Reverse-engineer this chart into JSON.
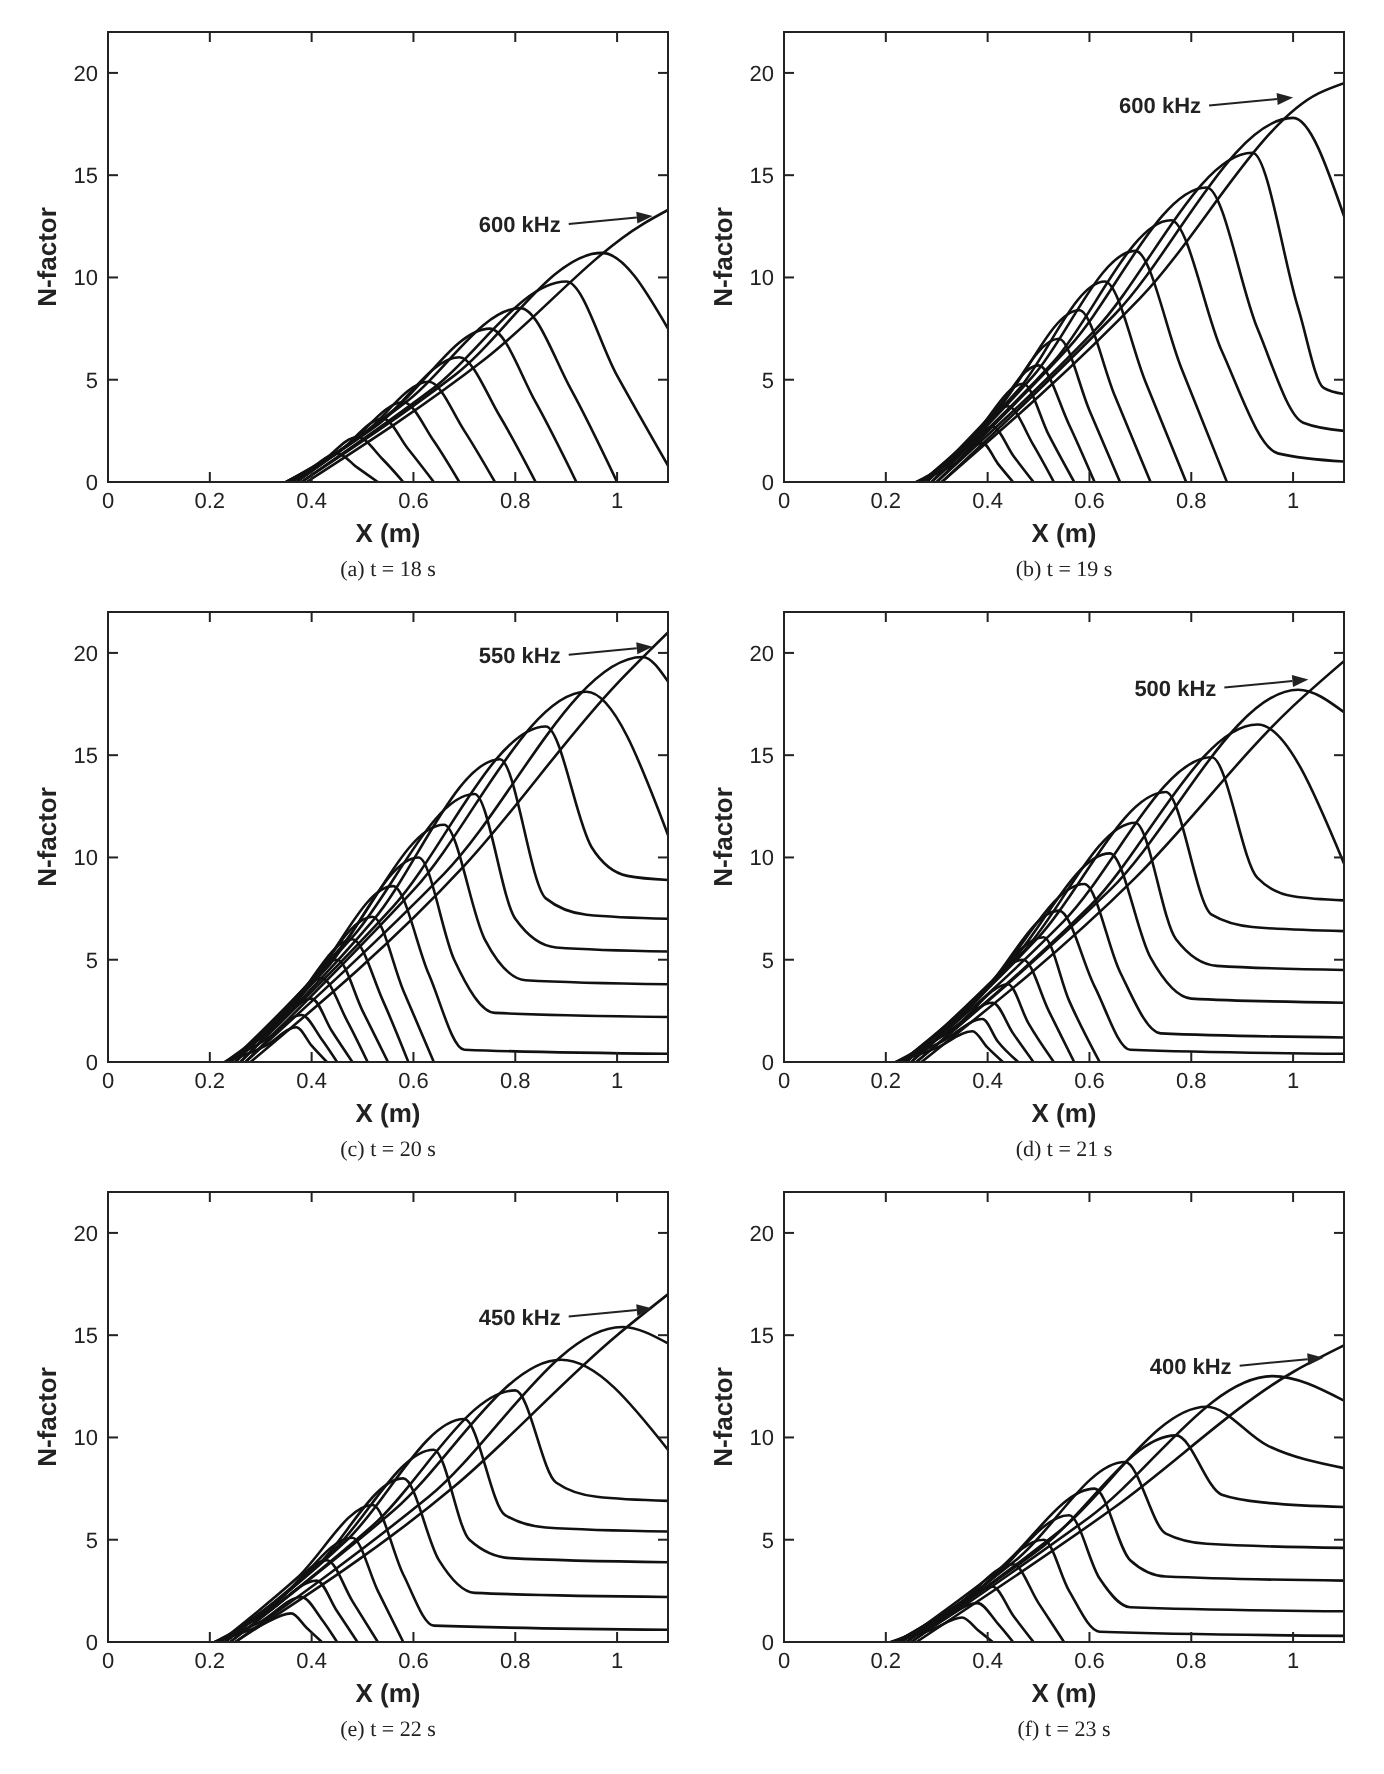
{
  "chart_data": [
    {
      "type": "line",
      "title": "(a) t = 18 s",
      "xlabel": "X (m)",
      "ylabel": "N-factor",
      "color": "#111111",
      "xlim": [
        0,
        1.1
      ],
      "ylim": [
        0,
        22
      ],
      "xticks": [
        0,
        0.2,
        0.4,
        0.6,
        0.8,
        1
      ],
      "yticks": [
        0,
        5,
        10,
        15,
        20
      ],
      "annotations": [
        {
          "text": "600 kHz",
          "x": 1.07,
          "y": 13.0
        }
      ],
      "series": [
        {
          "x": [
            0.35,
            0.4,
            0.45,
            0.49,
            0.53
          ],
          "values": [
            0,
            0.7,
            1.4,
            0.7,
            0
          ]
        },
        {
          "x": [
            0.35,
            0.42,
            0.49,
            0.54,
            0.58
          ],
          "values": [
            0,
            1.0,
            2.2,
            1.1,
            0
          ]
        },
        {
          "x": [
            0.35,
            0.45,
            0.54,
            0.59,
            0.64
          ],
          "values": [
            0,
            1.4,
            3.1,
            1.6,
            0
          ]
        },
        {
          "x": [
            0.36,
            0.47,
            0.58,
            0.64,
            0.69
          ],
          "values": [
            0,
            1.8,
            3.9,
            2.0,
            0
          ]
        },
        {
          "x": [
            0.36,
            0.5,
            0.63,
            0.7,
            0.76
          ],
          "values": [
            0,
            2.3,
            4.9,
            2.5,
            0
          ]
        },
        {
          "x": [
            0.36,
            0.53,
            0.69,
            0.77,
            0.84
          ],
          "values": [
            0,
            2.8,
            6.1,
            3.2,
            0
          ]
        },
        {
          "x": [
            0.37,
            0.56,
            0.75,
            0.84,
            0.92
          ],
          "values": [
            0,
            3.5,
            7.5,
            3.9,
            0
          ]
        },
        {
          "x": [
            0.37,
            0.59,
            0.81,
            0.91,
            1.0
          ],
          "values": [
            0,
            4.0,
            8.5,
            4.5,
            0
          ]
        },
        {
          "x": [
            0.38,
            0.64,
            0.9,
            1.0,
            1.1
          ],
          "values": [
            0,
            4.6,
            9.8,
            5.2,
            0.8
          ]
        },
        {
          "x": [
            0.38,
            0.68,
            0.97,
            1.1
          ],
          "values": [
            0,
            5.2,
            11.2,
            7.5
          ]
        },
        {
          "x": [
            0.39,
            0.74,
            1.05,
            1.1
          ],
          "values": [
            0,
            6.0,
            12.6,
            13.3
          ]
        }
      ]
    },
    {
      "type": "line",
      "title": "(b) t = 19 s",
      "xlabel": "X (m)",
      "ylabel": "N-factor",
      "color": "#111111",
      "xlim": [
        0,
        1.1
      ],
      "ylim": [
        0,
        22
      ],
      "xticks": [
        0,
        0.2,
        0.4,
        0.6,
        0.8,
        1
      ],
      "yticks": [
        0,
        5,
        10,
        15,
        20
      ],
      "annotations": [
        {
          "text": "600 kHz",
          "x": 1.0,
          "y": 18.8
        }
      ],
      "series": [
        {
          "x": [
            0.26,
            0.33,
            0.39,
            0.42,
            0.45
          ],
          "values": [
            0,
            0.8,
            1.9,
            0.9,
            0
          ]
        },
        {
          "x": [
            0.26,
            0.34,
            0.41,
            0.45,
            0.49
          ],
          "values": [
            0,
            1.2,
            2.7,
            1.3,
            0
          ]
        },
        {
          "x": [
            0.27,
            0.36,
            0.44,
            0.49,
            0.53
          ],
          "values": [
            0,
            1.7,
            3.7,
            1.8,
            0
          ]
        },
        {
          "x": [
            0.27,
            0.37,
            0.47,
            0.52,
            0.57
          ],
          "values": [
            0,
            2.2,
            4.8,
            2.3,
            0
          ]
        },
        {
          "x": [
            0.27,
            0.39,
            0.5,
            0.56,
            0.61
          ],
          "values": [
            0,
            2.6,
            5.7,
            2.8,
            0
          ]
        },
        {
          "x": [
            0.28,
            0.41,
            0.54,
            0.6,
            0.66
          ],
          "values": [
            0,
            3.2,
            7.0,
            3.5,
            0
          ]
        },
        {
          "x": [
            0.28,
            0.43,
            0.58,
            0.65,
            0.72
          ],
          "values": [
            0,
            3.9,
            8.4,
            4.2,
            0
          ]
        },
        {
          "x": [
            0.28,
            0.46,
            0.63,
            0.71,
            0.79
          ],
          "values": [
            0,
            4.5,
            9.8,
            4.9,
            0
          ]
        },
        {
          "x": [
            0.29,
            0.49,
            0.69,
            0.78,
            0.87
          ],
          "values": [
            0,
            5.2,
            11.3,
            5.6,
            0
          ]
        },
        {
          "x": [
            0.29,
            0.53,
            0.76,
            0.86,
            0.97,
            1.1
          ],
          "values": [
            0,
            5.9,
            12.8,
            6.4,
            1.4,
            1.0
          ]
        },
        {
          "x": [
            0.3,
            0.56,
            0.83,
            0.93,
            1.02,
            1.1
          ],
          "values": [
            0,
            6.6,
            14.4,
            7.5,
            2.9,
            2.5
          ]
        },
        {
          "x": [
            0.3,
            0.61,
            0.92,
            1.01,
            1.06,
            1.1
          ],
          "values": [
            0,
            7.4,
            16.1,
            8.5,
            4.6,
            4.3
          ]
        },
        {
          "x": [
            0.31,
            0.65,
            1.0,
            1.1
          ],
          "values": [
            0,
            8.2,
            17.8,
            13.0
          ]
        },
        {
          "x": [
            0.31,
            0.7,
            1.05,
            1.1
          ],
          "values": [
            0,
            9.0,
            19.0,
            19.5
          ]
        }
      ]
    },
    {
      "type": "line",
      "title": "(c) t = 20 s",
      "xlabel": "X (m)",
      "ylabel": "N-factor",
      "color": "#111111",
      "xlim": [
        0,
        1.1
      ],
      "ylim": [
        0,
        22
      ],
      "xticks": [
        0,
        0.2,
        0.4,
        0.6,
        0.8,
        1
      ],
      "yticks": [
        0,
        5,
        10,
        15,
        20
      ],
      "annotations": [
        {
          "text": "550 kHz",
          "x": 1.07,
          "y": 20.3
        }
      ],
      "series": [
        {
          "x": [
            0.23,
            0.31,
            0.37,
            0.4,
            0.43
          ],
          "values": [
            0,
            0.8,
            1.7,
            0.8,
            0
          ]
        },
        {
          "x": [
            0.23,
            0.31,
            0.38,
            0.42,
            0.45
          ],
          "values": [
            0,
            1.1,
            2.3,
            1.1,
            0
          ]
        },
        {
          "x": [
            0.23,
            0.32,
            0.4,
            0.44,
            0.48
          ],
          "values": [
            0,
            1.5,
            3.1,
            1.5,
            0
          ]
        },
        {
          "x": [
            0.23,
            0.33,
            0.42,
            0.47,
            0.51
          ],
          "values": [
            0,
            1.9,
            4.1,
            2.0,
            0
          ]
        },
        {
          "x": [
            0.24,
            0.35,
            0.45,
            0.5,
            0.55
          ],
          "values": [
            0,
            2.3,
            5.0,
            2.5,
            0
          ]
        },
        {
          "x": [
            0.24,
            0.36,
            0.48,
            0.54,
            0.59
          ],
          "values": [
            0,
            2.8,
            6.0,
            3.0,
            0
          ]
        },
        {
          "x": [
            0.24,
            0.38,
            0.52,
            0.58,
            0.64
          ],
          "values": [
            0,
            3.3,
            7.1,
            3.5,
            0
          ]
        },
        {
          "x": [
            0.24,
            0.4,
            0.56,
            0.63,
            0.7,
            1.1
          ],
          "values": [
            0,
            4.0,
            8.6,
            4.3,
            0.6,
            0.4
          ]
        },
        {
          "x": [
            0.25,
            0.43,
            0.61,
            0.68,
            0.76,
            1.1
          ],
          "values": [
            0,
            4.6,
            10.0,
            5.0,
            2.4,
            2.2
          ]
        },
        {
          "x": [
            0.25,
            0.45,
            0.66,
            0.74,
            0.82,
            1.1
          ],
          "values": [
            0,
            5.4,
            11.6,
            6.0,
            4.0,
            3.8
          ]
        },
        {
          "x": [
            0.25,
            0.48,
            0.72,
            0.8,
            0.88,
            1.1
          ],
          "values": [
            0,
            6.1,
            13.1,
            7.0,
            5.6,
            5.4
          ]
        },
        {
          "x": [
            0.26,
            0.52,
            0.77,
            0.86,
            0.94,
            1.1
          ],
          "values": [
            0,
            6.9,
            14.8,
            8.0,
            7.2,
            7.0
          ]
        },
        {
          "x": [
            0.26,
            0.56,
            0.86,
            0.95,
            1.02,
            1.1
          ],
          "values": [
            0,
            7.6,
            16.4,
            10.5,
            9.1,
            8.9
          ]
        },
        {
          "x": [
            0.27,
            0.6,
            0.94,
            1.1
          ],
          "values": [
            0,
            8.4,
            18.1,
            11.1
          ]
        },
        {
          "x": [
            0.27,
            0.66,
            1.05,
            1.1
          ],
          "values": [
            0,
            9.2,
            19.8,
            18.6
          ]
        },
        {
          "x": [
            0.28,
            0.7,
            1.0,
            1.1
          ],
          "values": [
            0,
            9.6,
            18.5,
            21.0
          ]
        }
      ]
    },
    {
      "type": "line",
      "title": "(d) t = 21 s",
      "xlabel": "X (m)",
      "ylabel": "N-factor",
      "color": "#111111",
      "xlim": [
        0,
        1.1
      ],
      "ylim": [
        0,
        22
      ],
      "xticks": [
        0,
        0.2,
        0.4,
        0.6,
        0.8,
        1
      ],
      "yticks": [
        0,
        5,
        10,
        15,
        20
      ],
      "annotations": [
        {
          "text": "500 kHz",
          "x": 1.03,
          "y": 18.7
        }
      ],
      "series": [
        {
          "x": [
            0.22,
            0.3,
            0.37,
            0.4,
            0.43
          ],
          "values": [
            0,
            0.7,
            1.5,
            0.7,
            0
          ]
        },
        {
          "x": [
            0.22,
            0.31,
            0.39,
            0.42,
            0.46
          ],
          "values": [
            0,
            1.0,
            2.1,
            1.0,
            0
          ]
        },
        {
          "x": [
            0.22,
            0.32,
            0.41,
            0.45,
            0.49
          ],
          "values": [
            0,
            1.4,
            2.9,
            1.4,
            0
          ]
        },
        {
          "x": [
            0.23,
            0.34,
            0.44,
            0.48,
            0.53
          ],
          "values": [
            0,
            1.8,
            3.8,
            1.9,
            0
          ]
        },
        {
          "x": [
            0.23,
            0.35,
            0.47,
            0.52,
            0.57
          ],
          "values": [
            0,
            2.3,
            5.0,
            2.5,
            0
          ]
        },
        {
          "x": [
            0.23,
            0.37,
            0.51,
            0.56,
            0.62
          ],
          "values": [
            0,
            2.8,
            6.1,
            3.0,
            0
          ]
        },
        {
          "x": [
            0.23,
            0.39,
            0.54,
            0.61,
            0.68,
            1.1
          ],
          "values": [
            0,
            3.4,
            7.4,
            3.7,
            0.6,
            0.4
          ]
        },
        {
          "x": [
            0.24,
            0.41,
            0.59,
            0.66,
            0.74,
            1.1
          ],
          "values": [
            0,
            4.0,
            8.7,
            4.4,
            1.4,
            1.2
          ]
        },
        {
          "x": [
            0.24,
            0.44,
            0.64,
            0.72,
            0.8,
            1.1
          ],
          "values": [
            0,
            4.7,
            10.2,
            5.1,
            3.1,
            2.9
          ]
        },
        {
          "x": [
            0.24,
            0.47,
            0.69,
            0.77,
            0.85,
            1.1
          ],
          "values": [
            0,
            5.4,
            11.7,
            6.0,
            4.7,
            4.5
          ]
        },
        {
          "x": [
            0.25,
            0.5,
            0.75,
            0.84,
            0.92,
            1.1
          ],
          "values": [
            0,
            6.1,
            13.2,
            7.2,
            6.6,
            6.4
          ]
        },
        {
          "x": [
            0.25,
            0.55,
            0.84,
            0.93,
            1.0,
            1.1
          ],
          "values": [
            0,
            6.9,
            14.9,
            9.0,
            8.1,
            7.9
          ]
        },
        {
          "x": [
            0.26,
            0.6,
            0.93,
            1.1
          ],
          "values": [
            0,
            7.6,
            16.5,
            9.7
          ]
        },
        {
          "x": [
            0.26,
            0.64,
            1.01,
            1.1
          ],
          "values": [
            0,
            8.4,
            18.2,
            17.1
          ]
        },
        {
          "x": [
            0.27,
            0.69,
            1.0,
            1.1
          ],
          "values": [
            0,
            9.0,
            17.4,
            19.6
          ]
        }
      ]
    },
    {
      "type": "line",
      "title": "(e) t = 22 s",
      "xlabel": "X (m)",
      "ylabel": "N-factor",
      "color": "#111111",
      "xlim": [
        0,
        1.1
      ],
      "ylim": [
        0,
        22
      ],
      "xticks": [
        0,
        0.2,
        0.4,
        0.6,
        0.8,
        1
      ],
      "yticks": [
        0,
        5,
        10,
        15,
        20
      ],
      "annotations": [
        {
          "text": "450 kHz",
          "x": 1.07,
          "y": 16.3
        }
      ],
      "series": [
        {
          "x": [
            0.21,
            0.29,
            0.36,
            0.39,
            0.42
          ],
          "values": [
            0,
            0.7,
            1.4,
            0.7,
            0
          ]
        },
        {
          "x": [
            0.21,
            0.3,
            0.38,
            0.42,
            0.45
          ],
          "values": [
            0,
            1.0,
            2.2,
            1.1,
            0
          ]
        },
        {
          "x": [
            0.21,
            0.31,
            0.41,
            0.45,
            0.49
          ],
          "values": [
            0,
            1.4,
            3.0,
            1.5,
            0
          ]
        },
        {
          "x": [
            0.22,
            0.33,
            0.43,
            0.48,
            0.53
          ],
          "values": [
            0,
            1.9,
            4.0,
            2.0,
            0
          ]
        },
        {
          "x": [
            0.22,
            0.35,
            0.48,
            0.53,
            0.58
          ],
          "values": [
            0,
            2.4,
            5.1,
            2.5,
            0
          ]
        },
        {
          "x": [
            0.22,
            0.37,
            0.52,
            0.58,
            0.64,
            1.1
          ],
          "values": [
            0,
            3.1,
            6.7,
            3.3,
            0.8,
            0.6
          ]
        },
        {
          "x": [
            0.23,
            0.41,
            0.58,
            0.65,
            0.72,
            1.1
          ],
          "values": [
            0,
            3.7,
            8.0,
            4.0,
            2.4,
            2.2
          ]
        },
        {
          "x": [
            0.23,
            0.44,
            0.64,
            0.71,
            0.79,
            1.1
          ],
          "values": [
            0,
            4.4,
            9.4,
            5.0,
            4.1,
            3.9
          ]
        },
        {
          "x": [
            0.23,
            0.47,
            0.7,
            0.78,
            0.86,
            1.1
          ],
          "values": [
            0,
            5.0,
            10.9,
            6.2,
            5.6,
            5.4
          ]
        },
        {
          "x": [
            0.24,
            0.52,
            0.8,
            0.88,
            0.96,
            1.1
          ],
          "values": [
            0,
            5.7,
            12.3,
            7.8,
            7.1,
            6.9
          ]
        },
        {
          "x": [
            0.24,
            0.56,
            0.89,
            1.1
          ],
          "values": [
            0,
            6.4,
            13.8,
            9.4
          ]
        },
        {
          "x": [
            0.25,
            0.63,
            1.01,
            1.1
          ],
          "values": [
            0,
            7.1,
            15.4,
            14.6
          ]
        },
        {
          "x": [
            0.25,
            0.68,
            1.0,
            1.1
          ],
          "values": [
            0,
            7.6,
            15.0,
            17.0
          ]
        }
      ]
    },
    {
      "type": "line",
      "title": "(f) t = 23 s",
      "xlabel": "X (m)",
      "ylabel": "N-factor",
      "color": "#111111",
      "xlim": [
        0,
        1.1
      ],
      "ylim": [
        0,
        22
      ],
      "xticks": [
        0,
        0.2,
        0.4,
        0.6,
        0.8,
        1
      ],
      "yticks": [
        0,
        5,
        10,
        15,
        20
      ],
      "annotations": [
        {
          "text": "400 kHz",
          "x": 1.06,
          "y": 13.9
        }
      ],
      "series": [
        {
          "x": [
            0.21,
            0.29,
            0.35,
            0.38,
            0.41
          ],
          "values": [
            0,
            0.6,
            1.2,
            0.6,
            0
          ]
        },
        {
          "x": [
            0.21,
            0.3,
            0.38,
            0.42,
            0.45
          ],
          "values": [
            0,
            0.9,
            1.9,
            0.9,
            0
          ]
        },
        {
          "x": [
            0.22,
            0.32,
            0.41,
            0.45,
            0.49
          ],
          "values": [
            0,
            1.3,
            2.7,
            1.3,
            0
          ]
        },
        {
          "x": [
            0.22,
            0.34,
            0.45,
            0.5,
            0.55
          ],
          "values": [
            0,
            1.8,
            3.8,
            1.9,
            0
          ]
        },
        {
          "x": [
            0.22,
            0.37,
            0.51,
            0.56,
            0.62,
            1.1
          ],
          "values": [
            0,
            2.3,
            5.0,
            2.5,
            0.5,
            0.3
          ]
        },
        {
          "x": [
            0.23,
            0.4,
            0.56,
            0.62,
            0.68,
            1.1
          ],
          "values": [
            0,
            2.9,
            6.2,
            3.1,
            1.7,
            1.5
          ]
        },
        {
          "x": [
            0.23,
            0.42,
            0.61,
            0.68,
            0.75,
            1.1
          ],
          "values": [
            0,
            3.5,
            7.5,
            4.0,
            3.2,
            3.0
          ]
        },
        {
          "x": [
            0.24,
            0.46,
            0.67,
            0.75,
            0.83,
            1.1
          ],
          "values": [
            0,
            4.1,
            8.8,
            5.3,
            4.8,
            4.6
          ]
        },
        {
          "x": [
            0.24,
            0.51,
            0.77,
            0.86,
            0.95,
            1.1
          ],
          "values": [
            0,
            4.7,
            10.1,
            7.2,
            6.8,
            6.6
          ]
        },
        {
          "x": [
            0.25,
            0.54,
            0.83,
            0.95,
            1.1
          ],
          "values": [
            0,
            5.4,
            11.5,
            9.6,
            8.5
          ]
        },
        {
          "x": [
            0.25,
            0.6,
            0.96,
            1.1
          ],
          "values": [
            0,
            6.1,
            13.0,
            11.8
          ]
        },
        {
          "x": [
            0.26,
            0.65,
            1.0,
            1.1
          ],
          "values": [
            0,
            6.6,
            13.2,
            14.5
          ]
        }
      ]
    }
  ]
}
